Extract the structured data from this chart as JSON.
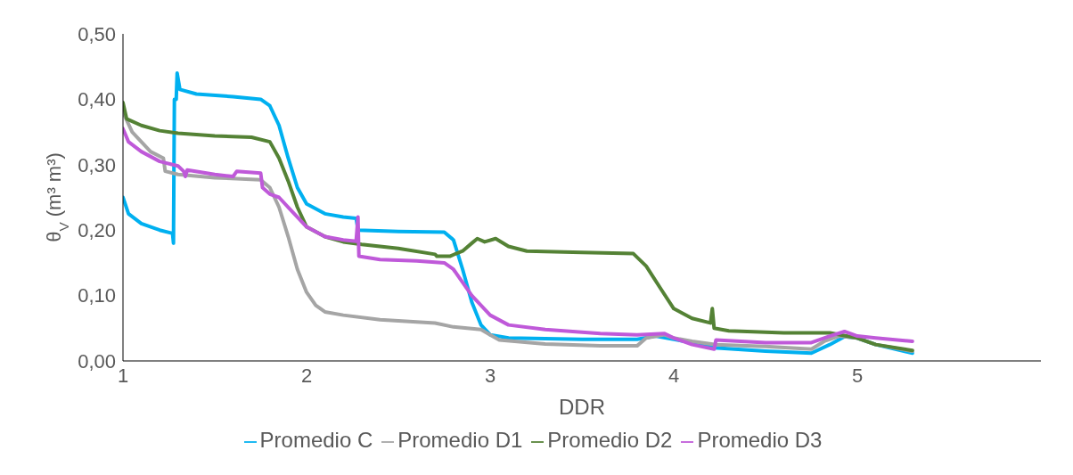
{
  "chart_data": {
    "type": "line",
    "xlabel": "DDR",
    "ylabel": "θ$_{V}$ (m³ m³)",
    "xlim": [
      1,
      6
    ],
    "xticks": [
      1,
      2,
      3,
      4,
      5
    ],
    "ylim": [
      0,
      0.5
    ],
    "yticks": [
      {
        "value": 0,
        "label": "0,00"
      },
      {
        "value": 0.1,
        "label": "0,10"
      },
      {
        "value": 0.2,
        "label": "0,20"
      },
      {
        "value": 0.3,
        "label": "0,30"
      },
      {
        "value": 0.4,
        "label": "0,40"
      },
      {
        "value": 0.5,
        "label": "0,50"
      }
    ],
    "grid": false,
    "legend": "bottom",
    "marker": "none",
    "line_style": "solid",
    "series": [
      {
        "name": "Promedio C",
        "color": "#00b0f0",
        "x": [
          1.0,
          1.03,
          1.1,
          1.2,
          1.27,
          1.275,
          1.28,
          1.29,
          1.295,
          1.31,
          1.4,
          1.6,
          1.75,
          1.8,
          1.85,
          1.9,
          1.95,
          2.0,
          2.1,
          2.2,
          2.27,
          2.28,
          2.5,
          2.75,
          2.8,
          2.85,
          2.9,
          2.95,
          3.0,
          3.1,
          3.5,
          3.8,
          3.9,
          4.0,
          4.1,
          4.22,
          4.5,
          4.75,
          4.85,
          4.93,
          5.0,
          5.1,
          5.3
        ],
        "values": [
          0.25,
          0.225,
          0.21,
          0.2,
          0.195,
          0.18,
          0.4,
          0.4,
          0.44,
          0.415,
          0.408,
          0.404,
          0.4,
          0.39,
          0.36,
          0.31,
          0.265,
          0.24,
          0.225,
          0.22,
          0.218,
          0.2,
          0.198,
          0.197,
          0.185,
          0.14,
          0.09,
          0.055,
          0.04,
          0.035,
          0.033,
          0.033,
          0.038,
          null,
          0.028,
          0.02,
          0.015,
          0.012,
          0.025,
          0.037,
          0.035,
          0.025,
          0.012
        ]
      },
      {
        "name": "Promedio D1",
        "color": "#a5a5a5",
        "x": [
          1.0,
          1.05,
          1.15,
          1.22,
          1.23,
          1.3,
          1.5,
          1.75,
          1.8,
          1.85,
          1.9,
          1.95,
          2.0,
          2.05,
          2.1,
          2.2,
          2.4,
          2.7,
          2.8,
          2.95,
          3.0,
          3.05,
          3.3,
          3.6,
          3.8,
          3.85,
          3.95,
          4.0,
          4.1,
          4.23,
          4.5,
          4.75,
          4.82,
          4.9,
          5.0,
          5.1,
          5.3
        ],
        "values": [
          0.38,
          0.35,
          0.32,
          0.31,
          0.29,
          0.285,
          0.28,
          0.277,
          0.265,
          0.235,
          0.19,
          0.14,
          0.105,
          0.085,
          0.075,
          0.07,
          0.063,
          0.058,
          0.052,
          0.048,
          0.04,
          0.032,
          0.026,
          0.023,
          0.023,
          0.035,
          0.04,
          0.035,
          0.03,
          0.025,
          0.022,
          0.018,
          0.03,
          0.038,
          0.035,
          0.025,
          0.015
        ]
      },
      {
        "name": "Promedio D2",
        "color": "#548235",
        "x": [
          1.0,
          1.02,
          1.1,
          1.2,
          1.3,
          1.5,
          1.7,
          1.8,
          1.85,
          1.9,
          1.95,
          2.0,
          2.1,
          2.2,
          2.3,
          2.5,
          2.7,
          2.71,
          2.78,
          2.85,
          2.9,
          2.93,
          2.97,
          3.03,
          3.1,
          3.2,
          3.5,
          3.78,
          3.85,
          3.93,
          4.0,
          4.1,
          4.2,
          4.21,
          4.22,
          4.3,
          4.6,
          4.75,
          4.85,
          5.0,
          5.1,
          5.3
        ],
        "values": [
          0.395,
          0.37,
          0.36,
          0.352,
          0.348,
          0.344,
          0.342,
          0.335,
          0.31,
          0.275,
          0.235,
          0.205,
          0.19,
          0.182,
          0.178,
          0.172,
          0.163,
          0.16,
          0.16,
          0.168,
          0.18,
          0.187,
          0.182,
          0.187,
          0.175,
          0.168,
          0.166,
          0.164,
          0.145,
          0.11,
          0.08,
          0.065,
          0.058,
          0.08,
          0.05,
          0.046,
          0.043,
          0.043,
          0.043,
          0.035,
          0.025,
          0.016
        ]
      },
      {
        "name": "Promedio D3",
        "color": "#bf59d9",
        "x": [
          1.0,
          1.03,
          1.1,
          1.2,
          1.3,
          1.33,
          1.34,
          1.35,
          1.5,
          1.6,
          1.62,
          1.75,
          1.76,
          1.8,
          1.85,
          1.9,
          2.0,
          2.1,
          2.2,
          2.27,
          2.28,
          2.285,
          2.4,
          2.6,
          2.75,
          2.8,
          2.85,
          2.9,
          3.0,
          3.1,
          3.3,
          3.6,
          3.8,
          3.95,
          4.0,
          4.1,
          4.22,
          4.23,
          4.5,
          4.75,
          4.85,
          4.93,
          5.0,
          5.1,
          5.3
        ],
        "values": [
          0.355,
          0.335,
          0.32,
          0.305,
          0.298,
          0.29,
          0.282,
          0.292,
          0.285,
          0.282,
          0.29,
          0.287,
          0.265,
          0.255,
          0.25,
          0.235,
          0.205,
          0.19,
          0.185,
          0.183,
          0.22,
          0.16,
          0.155,
          0.153,
          0.15,
          0.14,
          0.12,
          0.1,
          0.07,
          0.055,
          0.048,
          0.042,
          0.04,
          0.042,
          0.035,
          0.025,
          0.018,
          0.032,
          0.028,
          0.028,
          0.038,
          0.045,
          0.038,
          0.035,
          0.03
        ]
      }
    ]
  }
}
